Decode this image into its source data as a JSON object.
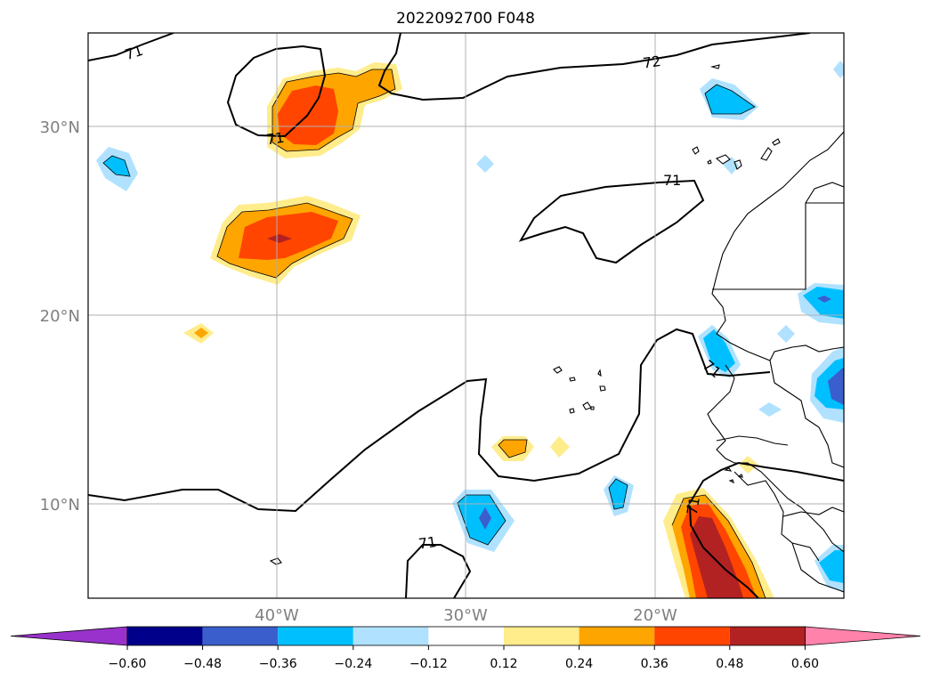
{
  "title": "2022092700 F048",
  "map": {
    "lat_labels": [
      "30°N",
      "20°N",
      "10°N"
    ],
    "lon_labels": [
      "40°W",
      "30°W",
      "20°W"
    ],
    "lat_values": [
      30,
      20,
      10
    ],
    "lon_values": [
      -40,
      -30,
      -20
    ],
    "extent": {
      "lon_min": -50,
      "lon_max": -10,
      "lat_min": 5,
      "lat_max": 35
    },
    "contour_labels": [
      "71",
      "72",
      "71",
      "71",
      "71",
      "71"
    ],
    "grid": true
  },
  "colorbar": {
    "tick_labels": [
      "−0.60",
      "−0.48",
      "−0.36",
      "−0.24",
      "−0.12",
      "0.12",
      "0.24",
      "0.36",
      "0.48",
      "0.60"
    ],
    "levels": [
      -0.6,
      -0.48,
      -0.36,
      -0.24,
      -0.12,
      0.12,
      0.24,
      0.36,
      0.48,
      0.6
    ],
    "colors": [
      "#9932cc",
      "#00008b",
      "#3a5fcd",
      "#00bfff",
      "#b0e2ff",
      "#ffffff",
      "#ffec8b",
      "#ffa500",
      "#ff4500",
      "#b22222",
      "#ff82ab"
    ]
  },
  "colors": {
    "grid": "#b0b0b0",
    "contour": "#000000",
    "label_gray": "#808080"
  }
}
